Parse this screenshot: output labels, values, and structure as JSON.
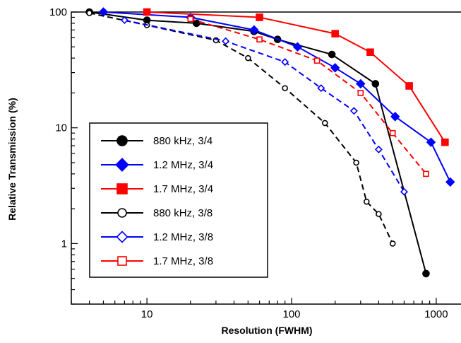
{
  "chart_data": {
    "type": "line",
    "xscale": "log",
    "yscale": "log",
    "xlim": [
      3,
      1500
    ],
    "ylim": [
      0.3,
      100
    ],
    "xlabel": "Resolution (FWHM)",
    "ylabel": "Relative Transmission (%)",
    "x_ticks": [
      {
        "value": 10,
        "label": "10"
      },
      {
        "value": 100,
        "label": "100"
      },
      {
        "value": 1000,
        "label": "1000"
      }
    ],
    "y_ticks": [
      {
        "value": 1,
        "label": "1"
      },
      {
        "value": 10,
        "label": "10"
      },
      {
        "value": 100,
        "label": "100"
      }
    ],
    "legend_position": "lower-left",
    "series": [
      {
        "name": "880 kHz, 3/4",
        "color": "#000000",
        "marker": "circle",
        "filled": true,
        "dashed": false,
        "x": [
          4,
          10,
          22,
          55,
          80,
          190,
          380,
          850
        ],
        "y": [
          100,
          85,
          80,
          68,
          58,
          43,
          24,
          0.55
        ]
      },
      {
        "name": "1.2 MHz, 3/4",
        "color": "#0000ff",
        "marker": "diamond",
        "filled": true,
        "dashed": false,
        "x": [
          5,
          20,
          55,
          110,
          200,
          300,
          520,
          920,
          1250
        ],
        "y": [
          100,
          90,
          70,
          50,
          33,
          24,
          12.5,
          7.5,
          3.4
        ]
      },
      {
        "name": "1.7 MHz, 3/4",
        "color": "#ff0000",
        "marker": "square",
        "filled": true,
        "dashed": false,
        "x": [
          10,
          60,
          200,
          350,
          650,
          1150
        ],
        "y": [
          100,
          90,
          65,
          45,
          23,
          7.5
        ]
      },
      {
        "name": "880 kHz, 3/8",
        "color": "#000000",
        "marker": "circle",
        "filled": false,
        "dashed": true,
        "x": [
          4,
          10,
          30,
          50,
          90,
          170,
          280,
          330,
          400,
          500
        ],
        "y": [
          98,
          77,
          57,
          40,
          22,
          11,
          5,
          2.3,
          1.8,
          1
        ]
      },
      {
        "name": "1.2 MHz, 3/8",
        "color": "#0000ff",
        "marker": "diamond",
        "filled": false,
        "dashed": true,
        "x": [
          7,
          35,
          90,
          160,
          270,
          400,
          600
        ],
        "y": [
          85,
          56,
          37,
          22,
          14,
          6.5,
          2.8
        ]
      },
      {
        "name": "1.7 MHz, 3/8",
        "color": "#ff0000",
        "marker": "square",
        "filled": false,
        "dashed": true,
        "x": [
          20,
          60,
          150,
          300,
          500,
          850
        ],
        "y": [
          87,
          58,
          38,
          20,
          9,
          4
        ]
      }
    ]
  }
}
